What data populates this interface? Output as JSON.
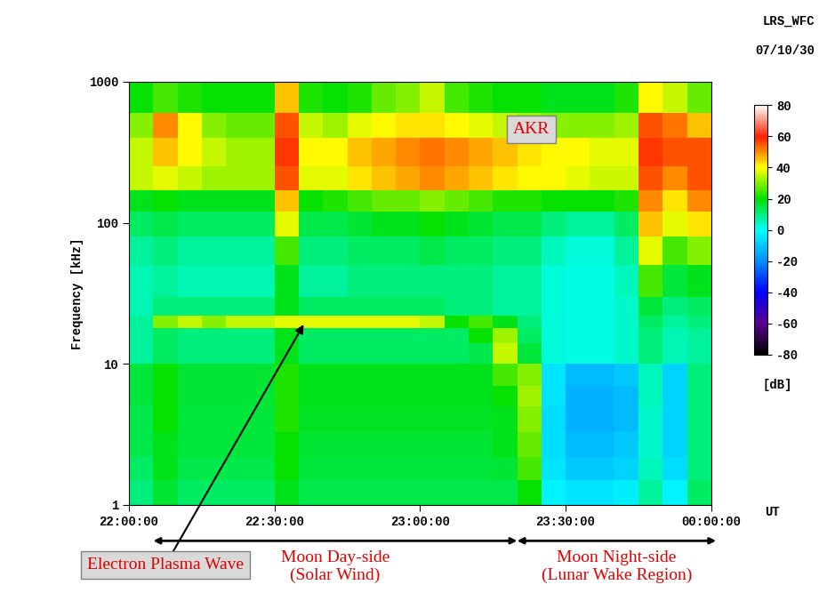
{
  "chart_data": {
    "type": "heatmap",
    "instrument": "LRS_WFC",
    "date": "07/10/30",
    "xlabel": "UT",
    "ylabel": "Frequency [kHz]",
    "log": "y",
    "xlim": [
      0,
      120
    ],
    "xticks": [
      {
        "value": 0,
        "label": "22:00:00"
      },
      {
        "value": 30,
        "label": "22:30:00"
      },
      {
        "value": 60,
        "label": "23:00:00"
      },
      {
        "value": 90,
        "label": "23:30:00"
      },
      {
        "value": 120,
        "label": "00:00:00"
      }
    ],
    "ylim": [
      1,
      1000
    ],
    "yticks": [
      1,
      10,
      100,
      1000
    ],
    "x_edges": [
      0,
      5,
      10,
      15,
      20,
      25,
      30,
      35,
      40,
      45,
      50,
      55,
      60,
      65,
      70,
      75,
      80,
      85,
      90,
      95,
      100,
      105,
      110,
      115,
      120
    ],
    "y_edges": [
      1,
      1.5,
      2.2,
      3.3,
      5,
      7,
      10,
      14,
      18,
      22,
      30,
      50,
      80,
      120,
      170,
      250,
      400,
      600,
      1000
    ],
    "cells": [
      [
        10,
        16,
        12,
        12,
        12,
        12,
        18,
        14,
        14,
        14,
        14,
        14,
        14,
        14,
        14,
        14,
        20,
        -2,
        -5,
        -5,
        -3,
        8,
        -2,
        12
      ],
      [
        12,
        18,
        14,
        14,
        14,
        14,
        20,
        15,
        15,
        15,
        15,
        15,
        15,
        15,
        15,
        16,
        25,
        -5,
        -10,
        -10,
        -8,
        5,
        -6,
        10
      ],
      [
        14,
        18,
        15,
        15,
        15,
        15,
        20,
        16,
        16,
        16,
        16,
        16,
        16,
        16,
        16,
        18,
        28,
        -6,
        -12,
        -12,
        -10,
        4,
        -8,
        10
      ],
      [
        14,
        20,
        15,
        15,
        15,
        15,
        22,
        17,
        17,
        17,
        17,
        17,
        17,
        17,
        17,
        18,
        30,
        -6,
        -14,
        -14,
        -12,
        4,
        -8,
        10
      ],
      [
        15,
        20,
        16,
        16,
        16,
        16,
        22,
        18,
        18,
        18,
        18,
        18,
        18,
        18,
        18,
        20,
        32,
        -5,
        -14,
        -14,
        -12,
        5,
        -8,
        10
      ],
      [
        15,
        20,
        16,
        16,
        16,
        16,
        22,
        18,
        18,
        18,
        18,
        18,
        18,
        18,
        18,
        25,
        30,
        -5,
        -12,
        -12,
        -10,
        5,
        -8,
        10
      ],
      [
        8,
        12,
        10,
        10,
        10,
        10,
        18,
        12,
        12,
        12,
        12,
        12,
        12,
        12,
        14,
        35,
        15,
        3,
        2,
        2,
        4,
        10,
        6,
        8
      ],
      [
        8,
        12,
        10,
        10,
        10,
        10,
        18,
        12,
        12,
        12,
        12,
        12,
        12,
        12,
        20,
        32,
        12,
        3,
        2,
        2,
        4,
        10,
        6,
        8
      ],
      [
        8,
        30,
        35,
        30,
        35,
        35,
        38,
        38,
        38,
        38,
        38,
        38,
        35,
        20,
        25,
        18,
        10,
        3,
        2,
        2,
        4,
        12,
        8,
        10
      ],
      [
        6,
        10,
        10,
        10,
        10,
        10,
        18,
        12,
        12,
        12,
        12,
        12,
        12,
        10,
        10,
        8,
        8,
        3,
        2,
        2,
        4,
        15,
        10,
        12
      ],
      [
        6,
        8,
        6,
        6,
        6,
        6,
        18,
        8,
        8,
        10,
        10,
        10,
        10,
        10,
        10,
        8,
        8,
        3,
        2,
        2,
        5,
        25,
        15,
        18
      ],
      [
        8,
        10,
        8,
        8,
        8,
        8,
        25,
        10,
        10,
        12,
        12,
        12,
        14,
        12,
        12,
        10,
        10,
        5,
        3,
        3,
        8,
        38,
        25,
        30
      ],
      [
        12,
        14,
        12,
        12,
        12,
        12,
        38,
        14,
        14,
        16,
        18,
        18,
        20,
        18,
        16,
        14,
        14,
        10,
        8,
        8,
        12,
        45,
        38,
        42
      ],
      [
        18,
        20,
        18,
        18,
        18,
        18,
        45,
        20,
        22,
        25,
        28,
        28,
        30,
        28,
        25,
        22,
        22,
        20,
        20,
        20,
        22,
        50,
        42,
        50
      ],
      [
        35,
        38,
        35,
        32,
        32,
        32,
        55,
        38,
        38,
        42,
        45,
        48,
        50,
        48,
        45,
        42,
        40,
        40,
        38,
        36,
        36,
        55,
        50,
        55
      ],
      [
        35,
        45,
        40,
        35,
        32,
        32,
        58,
        40,
        40,
        45,
        48,
        50,
        52,
        50,
        48,
        45,
        42,
        40,
        40,
        38,
        38,
        58,
        55,
        55
      ],
      [
        30,
        50,
        40,
        30,
        28,
        28,
        55,
        35,
        32,
        38,
        40,
        42,
        42,
        40,
        38,
        35,
        32,
        30,
        30,
        30,
        32,
        55,
        52,
        45
      ],
      [
        20,
        25,
        22,
        20,
        20,
        20,
        45,
        22,
        20,
        22,
        28,
        30,
        35,
        25,
        22,
        20,
        20,
        18,
        18,
        18,
        22,
        40,
        35,
        28
      ]
    ],
    "colorbar": {
      "range": [
        -80,
        80
      ],
      "ticks": [
        80,
        60,
        40,
        20,
        0,
        -20,
        -40,
        -60,
        -80
      ],
      "label": "[dB]"
    },
    "labels": [
      {
        "text": "AKR",
        "x": 83,
        "y": 460
      }
    ],
    "callouts": [
      {
        "text": "Electron Plasma Wave",
        "x": 36,
        "y": 19
      }
    ],
    "regions": [
      {
        "label": "Moon Day-side\n(Solar Wind)",
        "start": 5,
        "end": 80
      },
      {
        "label": "Moon Night-side\n(Lunar Wake Region)",
        "start": 80,
        "end": 121
      }
    ]
  }
}
